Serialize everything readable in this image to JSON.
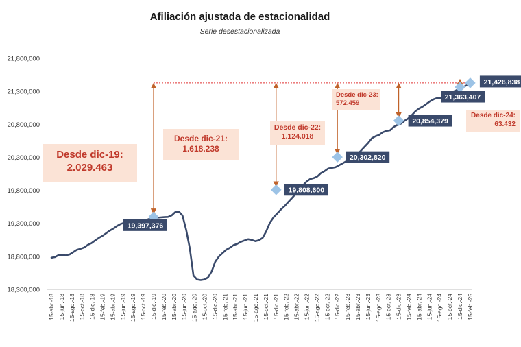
{
  "title": "Afiliación ajustada de estacionalidad",
  "subtitle": "Serie desestacionalizada",
  "colors": {
    "line": "#3a4a6b",
    "marker": "#9cc3e6",
    "label_bg": "#3a4a6b",
    "label_text": "#ffffff",
    "arrow": "#c0622a",
    "reference_line": "#e03030",
    "annotation_bg": "#fbe3d6",
    "annotation_text": "#c0392b"
  },
  "annotations": [
    {
      "line1": "Desde dic-19:",
      "line2": "2.029.463"
    },
    {
      "line1": "Desde dic-21:",
      "line2": "1.618.238"
    },
    {
      "line1": "Desde dic-22:",
      "line2": "1.124.018"
    },
    {
      "line1": "Desde dic-23:",
      "line2": "572.459"
    },
    {
      "line1": "Desde dic-24:",
      "line2": "63.432"
    }
  ],
  "chart_data": {
    "type": "line",
    "title": "Afiliación ajustada de estacionalidad",
    "subtitle": "Serie desestacionalizada",
    "ylim": [
      18300000,
      21800000
    ],
    "yticks": [
      18300000,
      18800000,
      19300000,
      19800000,
      20300000,
      20800000,
      21300000,
      21800000
    ],
    "ytick_labels": [
      "18,300,000",
      "18,800,000",
      "19,300,000",
      "19,800,000",
      "20,300,000",
      "20,800,000",
      "21,300,000",
      "21,800,000"
    ],
    "xtick_labels": [
      "15-abr.-18",
      "15-jun.-18",
      "15-ago.-18",
      "15-oct.-18",
      "15-dic.-18",
      "15-feb.-19",
      "15-abr.-19",
      "15-jun.-19",
      "15-ago.-19",
      "15-oct.-19",
      "15-dic.-19",
      "15-feb.-20",
      "15-abr.-20",
      "15-jun.-20",
      "15-ago.-20",
      "15-oct.-20",
      "15-dic.-20",
      "15-feb.-21",
      "15-abr.-21",
      "15-jun.-21",
      "15-ago.-21",
      "15-oct.-21",
      "15-dic.-21",
      "15-feb.-22",
      "15-abr.-22",
      "15-jun.-22",
      "15-ago.-22",
      "15-oct.-22",
      "15-dic.-22",
      "15-feb.-23",
      "15-abr.-23",
      "15-jun.-23",
      "15-ago.-23",
      "15-oct.-23",
      "15-dic.-23",
      "15-feb.-24",
      "15-abr.-24",
      "15-jun.-24",
      "15-ago.-24",
      "15-oct.-24",
      "15-dic.-24",
      "15-feb.-25"
    ],
    "grid": false,
    "series": [
      {
        "values": [
          18780000,
          18790000,
          18820000,
          18820000,
          18815000,
          18830000,
          18865000,
          18900000,
          18915000,
          18935000,
          18975000,
          19000000,
          19040000,
          19080000,
          19110000,
          19150000,
          19190000,
          19220000,
          19260000,
          19290000,
          19310000,
          19315000,
          19290000,
          19300000,
          19305000,
          19340000,
          19350000,
          19370000,
          19380000,
          19385000,
          19390000,
          19395000,
          19397376,
          19420000,
          19470000,
          19480000,
          19420000,
          19200000,
          18920000,
          18510000,
          18450000,
          18440000,
          18450000,
          18480000,
          18570000,
          18720000,
          18800000,
          18850000,
          18900000,
          18930000,
          18970000,
          18990000,
          19020000,
          19040000,
          19060000,
          19050000,
          19030000,
          19045000,
          19080000,
          19180000,
          19310000,
          19390000,
          19450000,
          19510000,
          19560000,
          19620000,
          19680000,
          19740000,
          19808600,
          19870000,
          19930000,
          19970000,
          19985000,
          20010000,
          20060000,
          20090000,
          20130000,
          20140000,
          20150000,
          20180000,
          20210000,
          20240000,
          20270000,
          20302820,
          20350000,
          20400000,
          20460000,
          20520000,
          20590000,
          20620000,
          20640000,
          20680000,
          20700000,
          20710000,
          20760000,
          20790000,
          20810000,
          20854379,
          20890000,
          20940000,
          21000000,
          21040000,
          21070000,
          21110000,
          21150000,
          21180000,
          21200000,
          21200000,
          21230000,
          21260000,
          21290000,
          21310000,
          21340000,
          21363407,
          21390000,
          21426838
        ]
      }
    ],
    "highlighted_points": [
      {
        "x": "15-dic.-19",
        "y": 19397376,
        "label": "19,397,376"
      },
      {
        "x": "15-dic.-21",
        "y": 19808600,
        "label": "19,808,600"
      },
      {
        "x": "15-dic.-22",
        "y": 20302820,
        "label": "20,302,820"
      },
      {
        "x": "15-dic.-23",
        "y": 20854379,
        "label": "20,854,379"
      },
      {
        "x": "15-dic.-24",
        "y": 21363407,
        "label": "21,363,407"
      },
      {
        "x": "15-feb.-25",
        "y": 21426838,
        "label": "21,426,838"
      }
    ],
    "reference_line": {
      "y": 21426838,
      "from": "15-dic.-19",
      "to": "15-feb.-25",
      "style": "dashed"
    },
    "legend": "none"
  }
}
